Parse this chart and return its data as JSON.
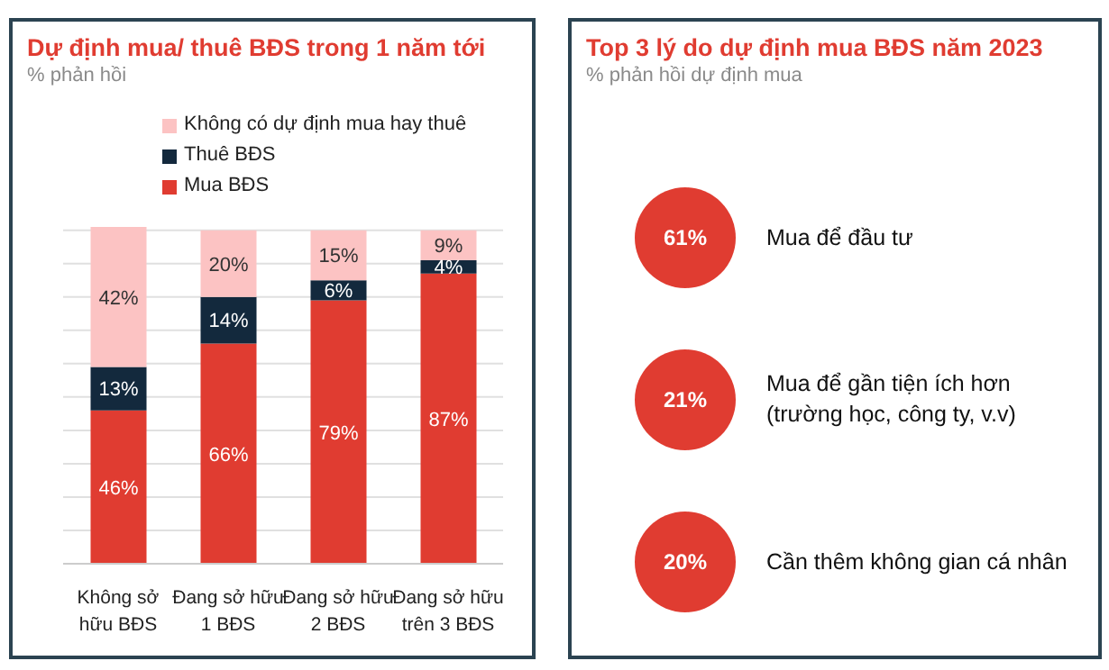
{
  "chart_data": [
    {
      "type": "bar",
      "title": "Dự định mua/ thuê BĐS trong 1 năm tới",
      "subtitle": "% phản hồi",
      "categories": [
        "Không sở hữu BĐS",
        "Đang sở hữu 1 BĐS",
        "Đang sở hữu 2 BĐS",
        "Đang sở hữu trên 3 BĐS"
      ],
      "stacked": true,
      "series": [
        {
          "name": "Mua BĐS",
          "color": "#e03c31",
          "values": [
            46,
            66,
            79,
            87
          ],
          "value_labels": [
            "46%",
            "66%",
            "79%",
            "87%"
          ]
        },
        {
          "name": "Thuê BĐS",
          "color": "#13293d",
          "values": [
            13,
            14,
            6,
            4
          ],
          "value_labels": [
            "13%",
            "14%",
            "6%",
            "4%"
          ]
        },
        {
          "name": "Không có dự định mua hay thuê",
          "color": "#fcc3c3",
          "values": [
            42,
            20,
            15,
            9
          ],
          "value_labels": [
            "42%",
            "20%",
            "15%",
            "9%"
          ]
        }
      ],
      "ylim": [
        0,
        101
      ],
      "yticks": [
        {
          "value": 0,
          "label": null
        },
        {
          "value": 10,
          "label": null
        },
        {
          "value": 20,
          "label": null
        },
        {
          "value": 30,
          "label": null
        },
        {
          "value": 40,
          "label": null
        },
        {
          "value": 50,
          "label": null
        },
        {
          "value": 60,
          "label": null
        },
        {
          "value": 70,
          "label": null
        },
        {
          "value": 80,
          "label": null
        },
        {
          "value": 90,
          "label": null
        },
        {
          "value": 100,
          "label": null
        }
      ],
      "tick_labels": "x",
      "grid": "y",
      "legend": "top"
    },
    {
      "type": "other",
      "title": "Top 3 lý do dự định mua BĐS năm 2023",
      "subtitle": "% phản hồi dự định mua",
      "categories": [
        "Mua để đầu tư",
        "Mua để gần tiện ích hơn (trường học, công ty, v.v)",
        "Cần thêm không gian cá nhân"
      ],
      "value_labels": [
        "61%",
        "21%",
        "20%"
      ],
      "color": "#e03c31"
    }
  ]
}
